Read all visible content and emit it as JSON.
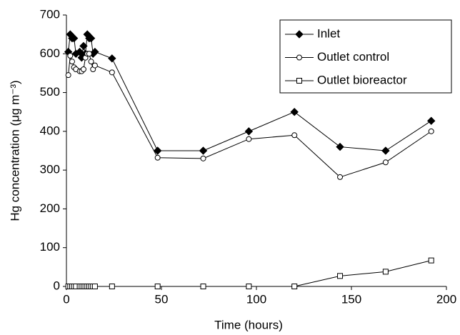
{
  "chart_data": {
    "type": "line",
    "x_label": "Time (hours)",
    "y_label": "Hg concentration (μg m⁻³)",
    "x": [
      1,
      2,
      3,
      4,
      5,
      7,
      8,
      9,
      10,
      11,
      12,
      13,
      14,
      15,
      24,
      48,
      72,
      96,
      120,
      144,
      168,
      192
    ],
    "series": [
      {
        "name": "Inlet",
        "color": "#000000",
        "marker": "diamond",
        "values": [
          605,
          650,
          640,
          640,
          600,
          605,
          590,
          620,
          600,
          650,
          640,
          640,
          600,
          605,
          588,
          350,
          350,
          400,
          450,
          360,
          350,
          427
        ]
      },
      {
        "name": "Outlet control",
        "color": "#000000",
        "marker": "circle",
        "values": [
          545,
          595,
          580,
          565,
          560,
          555,
          555,
          560,
          590,
          600,
          600,
          580,
          560,
          570,
          552,
          332,
          330,
          380,
          390,
          282,
          320,
          400
        ]
      },
      {
        "name": "Outlet bioreactor",
        "color": "#000000",
        "marker": "square",
        "values": [
          0,
          0,
          0,
          0,
          0,
          0,
          0,
          0,
          0,
          0,
          0,
          0,
          0,
          0,
          0,
          0,
          0,
          0,
          0,
          27,
          38,
          67
        ]
      }
    ],
    "xlim": [
      0,
      200
    ],
    "xticks": [
      0,
      50,
      100,
      150,
      200
    ],
    "ylim": [
      0,
      700
    ],
    "yticks": [
      0,
      100,
      200,
      300,
      400,
      500,
      600,
      700
    ],
    "legend": "top-right"
  }
}
